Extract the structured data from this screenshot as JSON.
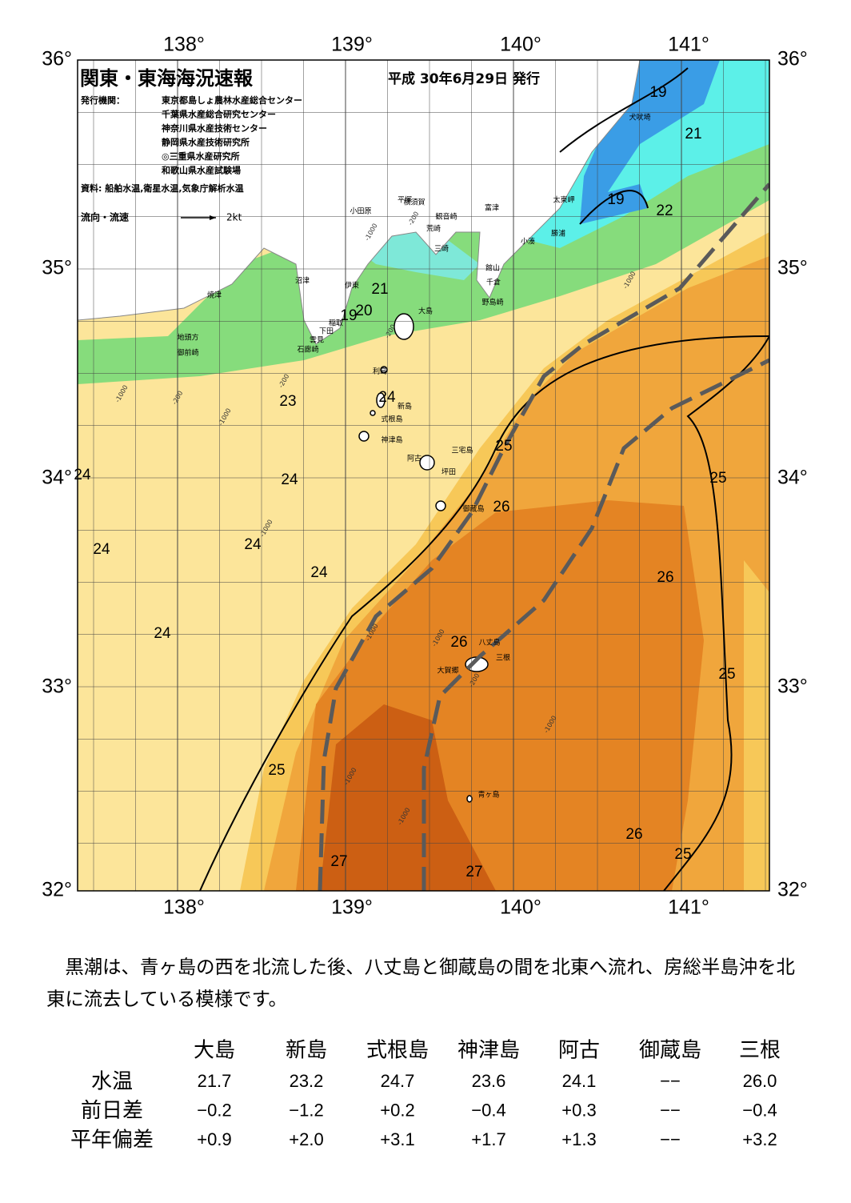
{
  "header": {
    "title": "関東・東海海況速報",
    "date": "平成 30年6月29日 発行",
    "agencies_label": "発行機関：",
    "agencies": [
      "東京都島しょ農林水産総合センター",
      "千葉県水産総合研究センター",
      "神奈川県水産技術センター",
      "静岡県水産技術研究所",
      "◎三重県水産研究所",
      "和歌山県水産試験場"
    ],
    "source": "資料: 船舶水温,衛星水温,気象庁解析水温",
    "flow_label": "流向・流速",
    "flow_scale": "2kt"
  },
  "map": {
    "lon_labels": [
      "138°",
      "139°",
      "140°",
      "141°"
    ],
    "lat_labels": [
      "36°",
      "35°",
      "34°",
      "33°",
      "32°"
    ],
    "place_names": [
      "犬吠埼",
      "太東岬",
      "勝浦",
      "小湊",
      "富津",
      "横須賀",
      "平塚",
      "小田原",
      "観音崎",
      "荒崎",
      "三崎",
      "館山",
      "千倉",
      "野島崎",
      "沼津",
      "伊東",
      "焼津",
      "稲取",
      "下田",
      "雲見",
      "石廊崎",
      "地頭方",
      "御前崎",
      "大島",
      "利島",
      "新島",
      "式根島",
      "神津島",
      "三宅島",
      "阿古",
      "坪田",
      "御蔵島",
      "八丈島",
      "三根",
      "大賀郷",
      "青ヶ島"
    ],
    "temperature_labels": [
      "19",
      "21",
      "19",
      "22",
      "21",
      "19",
      "20",
      "23",
      "24",
      "24",
      "24",
      "24",
      "24",
      "24",
      "24",
      "25",
      "26",
      "25",
      "26",
      "26",
      "25",
      "25",
      "27",
      "27",
      "26",
      "25"
    ],
    "depth_labels": [
      "-200",
      "-1000",
      "-1000",
      "-200",
      "-1000",
      "-200",
      "-1000",
      "-200",
      "-1000",
      "-1000",
      "-1000",
      "-200",
      "-1000",
      "-1000",
      "-1000"
    ]
  },
  "description": "黒潮は、青ヶ島の西を北流した後、八丈島と御蔵島の間を北東へ流れ、房総半島沖を北東に流去している模様です。",
  "table": {
    "columns": [
      "大島",
      "新島",
      "式根島",
      "神津島",
      "阿古",
      "御蔵島",
      "三根"
    ],
    "rows": [
      {
        "label": "水温",
        "values": [
          "21.7",
          "23.2",
          "24.7",
          "23.6",
          "24.1",
          "−−",
          "26.0"
        ]
      },
      {
        "label": "前日差",
        "values": [
          "−0.2",
          "−1.2",
          "+0.2",
          "−0.4",
          "+0.3",
          "−−",
          "−0.4"
        ]
      },
      {
        "label": "平年偏差",
        "values": [
          "+0.9",
          "+2.0",
          "+3.1",
          "+1.7",
          "+1.3",
          "−−",
          "+3.2"
        ]
      }
    ]
  }
}
